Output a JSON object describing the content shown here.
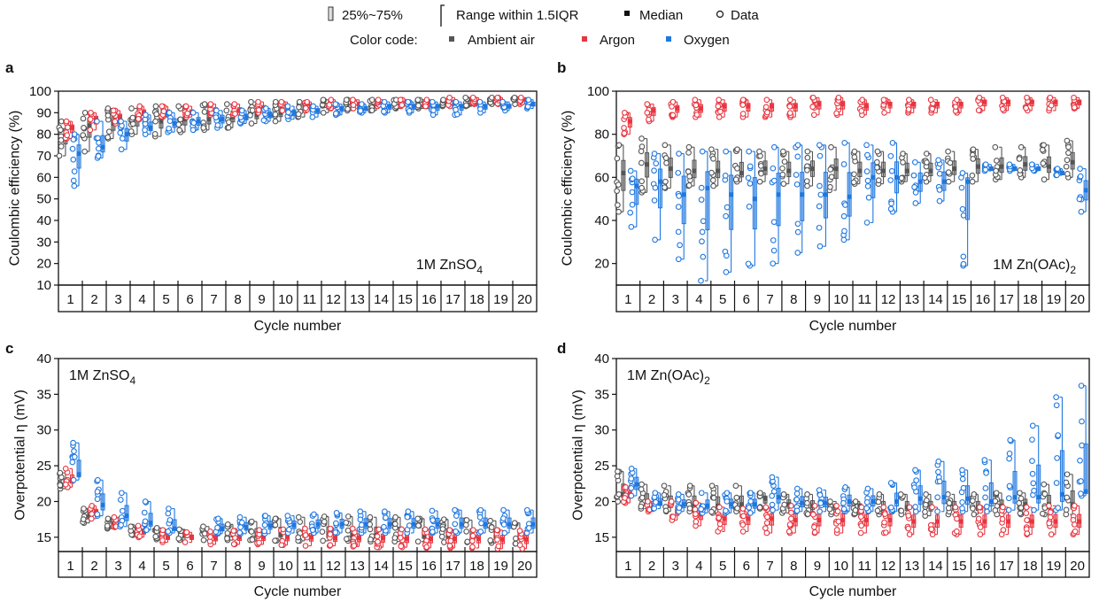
{
  "legend": {
    "box_label": "25%~75%",
    "range_label": "Range within 1.5IQR",
    "median_label": "Median",
    "data_label": "Data",
    "color_code_label": "Color code:",
    "groups": [
      {
        "name": "Ambient air",
        "color": "#555555"
      },
      {
        "name": "Argon",
        "color": "#e8353f"
      },
      {
        "name": "Oxygen",
        "color": "#1f77e0"
      }
    ]
  },
  "chart_data": [
    {
      "panel": "a",
      "type": "box",
      "annotation": "1M ZnSO",
      "annotation_sub": "4",
      "ylabel": "Coulombic efficiency (%)",
      "xlabel": "Cycle number",
      "ylim": [
        10,
        100
      ],
      "yticks": [
        10,
        20,
        30,
        40,
        50,
        60,
        70,
        80,
        90,
        100
      ],
      "categories": [
        "1",
        "2",
        "3",
        "4",
        "5",
        "6",
        "7",
        "8",
        "9",
        "10",
        "11",
        "12",
        "13",
        "14",
        "15",
        "16",
        "17",
        "18",
        "19",
        "20"
      ],
      "series": [
        {
          "name": "Ambient air",
          "median": [
            80,
            84,
            85,
            87,
            86,
            87,
            87,
            88,
            89,
            90,
            92,
            93,
            93,
            93,
            94,
            94,
            94,
            95,
            95,
            95
          ],
          "min": [
            70,
            72,
            78,
            80,
            79,
            81,
            82,
            83,
            85,
            86,
            88,
            90,
            91,
            91,
            92,
            92,
            93,
            93,
            94,
            94
          ],
          "max": [
            86,
            90,
            92,
            92,
            93,
            93,
            94,
            94,
            95,
            95,
            95,
            96,
            96,
            96,
            96,
            96,
            96,
            97,
            97,
            97
          ]
        },
        {
          "name": "Argon",
          "median": [
            83,
            87,
            88,
            90,
            90,
            90,
            91,
            91,
            92,
            93,
            93,
            94,
            94,
            94,
            95,
            95,
            95,
            95,
            95,
            96
          ],
          "min": [
            78,
            82,
            85,
            87,
            88,
            88,
            89,
            89,
            90,
            91,
            91,
            92,
            92,
            93,
            93,
            93,
            93,
            94,
            94,
            94
          ],
          "max": [
            86,
            90,
            91,
            93,
            93,
            93,
            94,
            94,
            95,
            95,
            95,
            96,
            96,
            96,
            96,
            96,
            97,
            97,
            97,
            97
          ]
        },
        {
          "name": "Oxygen",
          "median": [
            71,
            74,
            80,
            83,
            85,
            86,
            87,
            88,
            89,
            90,
            91,
            92,
            92,
            93,
            93,
            93,
            93,
            93,
            93,
            94
          ],
          "min": [
            56,
            69,
            73,
            80,
            81,
            82,
            83,
            85,
            86,
            87,
            88,
            89,
            90,
            90,
            90,
            89,
            89,
            90,
            91,
            92
          ],
          "max": [
            80,
            86,
            86,
            89,
            90,
            90,
            91,
            91,
            92,
            93,
            93,
            94,
            94,
            95,
            95,
            95,
            95,
            95,
            95,
            96
          ]
        }
      ]
    },
    {
      "panel": "b",
      "type": "box",
      "annotation": "1M Zn(OAc)",
      "annotation_sub": "2",
      "ylabel": "Coulombic efficiency (%)",
      "xlabel": "Cycle number",
      "ylim": [
        10,
        100
      ],
      "yticks": [
        20,
        40,
        60,
        80,
        100
      ],
      "categories": [
        "1",
        "2",
        "3",
        "4",
        "5",
        "6",
        "7",
        "8",
        "9",
        "10",
        "11",
        "12",
        "13",
        "14",
        "15",
        "16",
        "17",
        "18",
        "19",
        "20"
      ],
      "series": [
        {
          "name": "Ambient air",
          "median": [
            62,
            66,
            64,
            63,
            63,
            62,
            64,
            63,
            64,
            64,
            63,
            63,
            63,
            63,
            64,
            65,
            65,
            66,
            65,
            67
          ],
          "min": [
            44,
            53,
            55,
            56,
            56,
            58,
            58,
            57,
            56,
            54,
            57,
            57,
            58,
            58,
            58,
            58,
            59,
            60,
            59,
            60
          ],
          "max": [
            75,
            78,
            75,
            74,
            73,
            73,
            72,
            72,
            72,
            74,
            72,
            72,
            71,
            71,
            72,
            73,
            74,
            74,
            75,
            77
          ]
        },
        {
          "name": "Argon",
          "median": [
            86,
            91,
            92,
            92,
            93,
            93,
            93,
            93,
            94,
            94,
            93,
            94,
            94,
            94,
            94,
            95,
            95,
            95,
            95,
            95
          ],
          "min": [
            80,
            86,
            88,
            88,
            88,
            88,
            88,
            88,
            89,
            89,
            89,
            90,
            90,
            90,
            90,
            91,
            91,
            91,
            91,
            92
          ],
          "max": [
            90,
            94,
            95,
            96,
            96,
            96,
            96,
            96,
            97,
            97,
            96,
            96,
            96,
            96,
            96,
            97,
            97,
            97,
            97,
            97
          ]
        },
        {
          "name": "Oxygen",
          "median": [
            56,
            58,
            52,
            55,
            52,
            50,
            52,
            52,
            52,
            51,
            60,
            60,
            58,
            58,
            58,
            64,
            64,
            64,
            62,
            54
          ],
          "min": [
            37,
            31,
            22,
            12,
            16,
            19,
            20,
            25,
            28,
            31,
            39,
            44,
            48,
            49,
            19,
            63,
            63,
            63,
            61,
            44
          ],
          "max": [
            63,
            71,
            71,
            72,
            72,
            72,
            74,
            75,
            75,
            76,
            75,
            76,
            67,
            68,
            62,
            66,
            66,
            66,
            64,
            64
          ]
        }
      ]
    },
    {
      "panel": "c",
      "type": "box",
      "annotation": "1M ZnSO",
      "annotation_sub": "4",
      "ylabel": "Overpotential η (mV)",
      "xlabel": "Cycle number",
      "ylim": [
        13,
        40
      ],
      "yticks": [
        15,
        20,
        25,
        30,
        35,
        40
      ],
      "categories": [
        "1",
        "2",
        "3",
        "4",
        "5",
        "6",
        "7",
        "8",
        "9",
        "10",
        "11",
        "12",
        "13",
        "14",
        "15",
        "16",
        "17",
        "18",
        "19",
        "20"
      ],
      "series": [
        {
          "name": "Ambient air",
          "median": [
            22.5,
            18.0,
            16.8,
            16.0,
            15.4,
            15.3,
            15.3,
            15.4,
            15.4,
            15.4,
            15.4,
            15.3,
            15.3,
            15.3,
            15.3,
            15.2,
            15.2,
            15.2,
            15.1,
            15.1
          ],
          "min": [
            21.8,
            17.0,
            16.2,
            15.3,
            14.7,
            14.6,
            14.6,
            14.6,
            14.6,
            14.5,
            14.5,
            14.5,
            14.5,
            14.4,
            14.4,
            14.4,
            14.3,
            14.3,
            14.2,
            14.1
          ],
          "max": [
            24.0,
            19.0,
            17.6,
            16.5,
            16.3,
            16.1,
            16.5,
            16.8,
            17.2,
            17.6,
            17.8,
            17.9,
            17.9,
            17.8,
            17.8,
            17.6,
            17.5,
            17.4,
            17.3,
            17.0
          ]
        },
        {
          "name": "Argon",
          "median": [
            23.0,
            18.5,
            17.0,
            15.8,
            15.0,
            15.0,
            14.9,
            15.0,
            15.0,
            15.0,
            15.0,
            14.9,
            14.9,
            14.9,
            14.8,
            14.8,
            14.8,
            14.8,
            14.7,
            14.7
          ],
          "min": [
            22.0,
            17.6,
            16.4,
            15.0,
            14.3,
            14.3,
            14.0,
            14.0,
            14.0,
            13.9,
            13.8,
            13.8,
            13.7,
            13.6,
            13.6,
            13.5,
            13.5,
            13.5,
            13.4,
            13.4
          ],
          "max": [
            24.6,
            19.4,
            17.8,
            16.6,
            16.0,
            15.7,
            15.8,
            15.9,
            16.0,
            16.1,
            16.2,
            16.2,
            16.2,
            16.1,
            16.1,
            16.1,
            16.0,
            16.0,
            16.0,
            15.9
          ]
        },
        {
          "name": "Oxygen",
          "median": [
            23.8,
            19.5,
            18.0,
            17.0,
            16.2,
            null,
            16.2,
            16.4,
            16.6,
            16.7,
            16.8,
            16.8,
            16.8,
            16.8,
            16.8,
            16.8,
            16.8,
            16.8,
            16.8,
            16.8
          ],
          "min": [
            23.0,
            18.0,
            16.5,
            16.0,
            15.6,
            null,
            15.5,
            15.5,
            15.5,
            15.6,
            15.6,
            15.6,
            15.6,
            15.6,
            15.6,
            15.6,
            15.6,
            15.6,
            15.6,
            15.6
          ],
          "max": [
            28.2,
            23.0,
            21.2,
            20.0,
            19.0,
            null,
            17.6,
            17.8,
            18.0,
            18.0,
            18.2,
            18.4,
            18.6,
            18.6,
            18.6,
            18.7,
            18.8,
            18.8,
            18.8,
            18.8
          ]
        }
      ]
    },
    {
      "panel": "d",
      "type": "box",
      "annotation": "1M Zn(OAc)",
      "annotation_sub": "2",
      "ylabel": "Overpotential η (mV)",
      "xlabel": "Cycle number",
      "ylim": [
        13,
        40
      ],
      "yticks": [
        15,
        20,
        25,
        30,
        35,
        40
      ],
      "categories": [
        "1",
        "2",
        "3",
        "4",
        "5",
        "6",
        "7",
        "8",
        "9",
        "10",
        "11",
        "12",
        "13",
        "14",
        "15",
        "16",
        "17",
        "18",
        "19",
        "20"
      ],
      "series": [
        {
          "name": "Ambient air",
          "median": [
            21.0,
            20.0,
            19.6,
            19.6,
            19.4,
            19.6,
            20.4,
            19.6,
            19.4,
            19.4,
            19.4,
            19.2,
            19.2,
            19.2,
            19.2,
            19.2,
            19.4,
            19.6,
            19.6,
            19.6
          ],
          "min": [
            20.0,
            19.0,
            18.6,
            18.6,
            18.4,
            18.6,
            19.0,
            18.4,
            18.2,
            18.2,
            18.2,
            18.2,
            18.2,
            18.0,
            18.2,
            18.2,
            18.2,
            18.2,
            18.2,
            18.2
          ],
          "max": [
            24.2,
            22.4,
            22.2,
            22.2,
            22.2,
            22.2,
            21.2,
            21.0,
            21.0,
            20.0,
            20.0,
            21.0,
            21.0,
            21.0,
            21.0,
            21.0,
            21.2,
            21.2,
            22.4,
            23.8
          ]
        },
        {
          "name": "Argon",
          "median": [
            21.0,
            19.2,
            18.6,
            18.2,
            17.6,
            17.6,
            17.6,
            17.4,
            17.4,
            17.4,
            17.4,
            17.4,
            17.2,
            17.2,
            17.2,
            17.2,
            17.2,
            17.2,
            17.2,
            17.2
          ],
          "min": [
            19.8,
            18.6,
            17.4,
            16.6,
            15.8,
            15.8,
            15.6,
            15.6,
            15.6,
            15.6,
            15.6,
            15.6,
            15.4,
            15.4,
            15.4,
            15.4,
            15.4,
            15.4,
            15.4,
            15.4
          ],
          "max": [
            22.0,
            20.0,
            20.0,
            19.8,
            19.2,
            19.0,
            19.2,
            19.4,
            19.4,
            19.4,
            19.2,
            19.2,
            19.2,
            19.2,
            19.2,
            19.2,
            19.2,
            19.2,
            19.4,
            19.4
          ]
        },
        {
          "name": "Oxygen",
          "median": [
            22.4,
            19.8,
            19.6,
            19.4,
            19.6,
            19.6,
            20.6,
            19.8,
            19.8,
            20.0,
            20.0,
            20.0,
            20.4,
            20.6,
            20.4,
            20.0,
            20.6,
            20.6,
            21.0,
            21.4
          ],
          "min": [
            20.8,
            19.0,
            18.6,
            18.4,
            18.4,
            18.4,
            18.8,
            18.6,
            18.6,
            18.6,
            18.6,
            18.6,
            18.6,
            18.6,
            18.6,
            18.6,
            18.8,
            18.8,
            18.8,
            20.8
          ],
          "max": [
            24.6,
            21.2,
            21.0,
            21.2,
            21.2,
            21.2,
            23.4,
            21.8,
            21.6,
            22.0,
            21.8,
            22.6,
            24.4,
            25.6,
            24.4,
            25.8,
            28.6,
            30.6,
            34.6,
            36.2
          ]
        }
      ]
    }
  ]
}
